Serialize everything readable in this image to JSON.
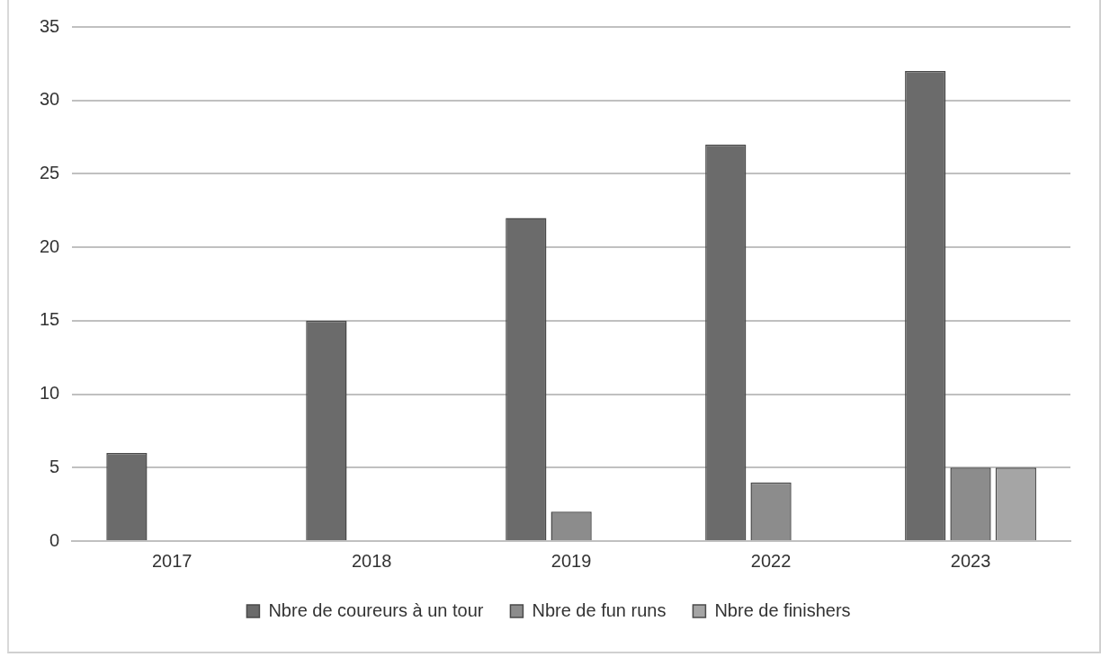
{
  "chart_data": {
    "type": "bar",
    "categories": [
      "2017",
      "2018",
      "2019",
      "2022",
      "2023"
    ],
    "series": [
      {
        "name": "Nbre de coureurs à un tour",
        "color": "#6b6b6b",
        "values": [
          6,
          15,
          22,
          27,
          32
        ]
      },
      {
        "name": "Nbre de fun runs",
        "color": "#8c8c8c",
        "values": [
          0,
          0,
          2,
          4,
          5
        ]
      },
      {
        "name": "Nbre de finishers",
        "color": "#a5a5a5",
        "values": [
          0,
          0,
          0,
          0,
          5
        ]
      }
    ],
    "ylim": [
      0,
      35
    ],
    "yticks": [
      0,
      5,
      10,
      15,
      20,
      25,
      30,
      35
    ],
    "grid": "y",
    "legend": "bottom"
  }
}
